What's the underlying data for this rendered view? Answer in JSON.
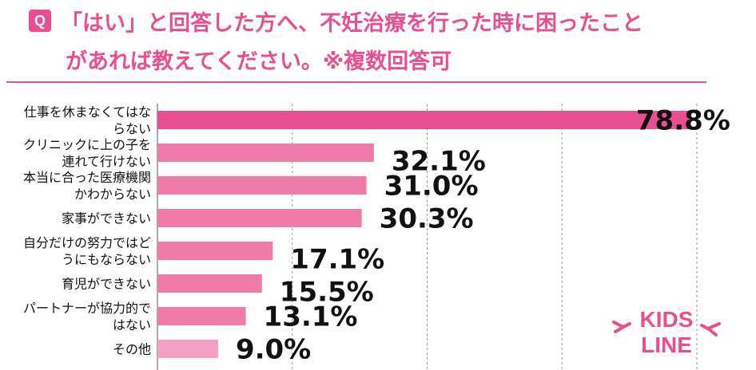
{
  "header": {
    "badge": "Q",
    "question_line1": "「はい」と回答した方へ、不妊治療を行った時に困ったこと",
    "question_line2": "があれば教えてください。※複数回答可"
  },
  "chart_data": {
    "type": "bar",
    "orientation": "horizontal",
    "categories": [
      [
        "仕事を休まなくてはな",
        "らない"
      ],
      [
        "クリニックに上の子を",
        "連れて行けない"
      ],
      [
        "本当に合った医療機関",
        "かわからない"
      ],
      [
        "家事ができない"
      ],
      [
        "自分だけの努力ではど",
        "うにもならない"
      ],
      [
        "育児ができない"
      ],
      [
        "パートナーが協力的で",
        "はない"
      ],
      [
        "その他"
      ]
    ],
    "values": [
      78.8,
      32.1,
      31.0,
      30.3,
      17.1,
      15.5,
      13.1,
      9.0
    ],
    "value_labels": [
      "78.8%",
      "32.1%",
      "31.0%",
      "30.3%",
      "17.1%",
      "15.5%",
      "13.1%",
      "9.0%"
    ],
    "xlim": [
      0,
      80
    ],
    "grid": true,
    "colors": {
      "bar_top": "#e84e90",
      "bar": "#f07aaa",
      "bar_light": "#f3a0c3",
      "grid": "#9a9a9a"
    }
  },
  "logo": {
    "line1": "KIDS",
    "line2": "LINE"
  }
}
